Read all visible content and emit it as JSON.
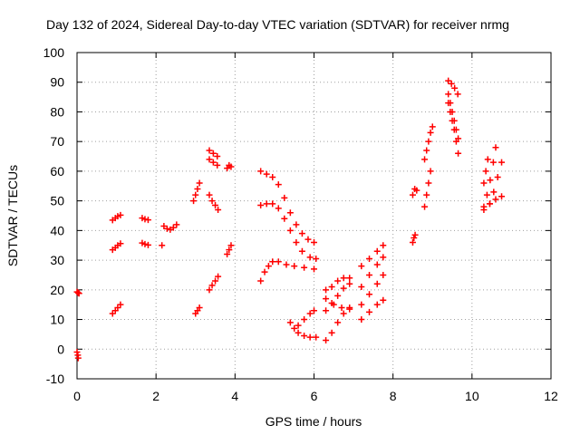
{
  "chart_data": {
    "type": "scatter",
    "title": "Day 132 of 2024, Sidereal Day-to-day VTEC variation (SDTVAR) for receiver nrmg",
    "xlabel": "GPS time / hours",
    "ylabel": "SDTVAR / TECUs",
    "xlim": [
      0,
      12
    ],
    "ylim": [
      -10,
      100
    ],
    "xticks": [
      "0",
      "2",
      "4",
      "6",
      "8",
      "10",
      "12"
    ],
    "yticks": [
      "-10",
      "0",
      "10",
      "20",
      "30",
      "40",
      "50",
      "60",
      "70",
      "80",
      "90",
      "100"
    ],
    "grid": true,
    "marker": "plus",
    "color": "#ff0000",
    "series": [
      {
        "name": "SDTVAR",
        "points": [
          [
            0.0,
            19.3
          ],
          [
            0.03,
            19.0
          ],
          [
            0.05,
            18.8
          ],
          [
            0.0,
            -1.0
          ],
          [
            0.02,
            -2.0
          ],
          [
            0.03,
            -3.0
          ],
          [
            0.9,
            12.0
          ],
          [
            0.97,
            13.0
          ],
          [
            1.03,
            14.0
          ],
          [
            1.1,
            15.0
          ],
          [
            0.9,
            33.5
          ],
          [
            0.97,
            34.2
          ],
          [
            1.03,
            35.0
          ],
          [
            1.1,
            35.6
          ],
          [
            0.9,
            43.5
          ],
          [
            0.97,
            44.2
          ],
          [
            1.03,
            44.8
          ],
          [
            1.1,
            45.2
          ],
          [
            1.65,
            44.2
          ],
          [
            1.72,
            43.8
          ],
          [
            1.8,
            43.6
          ],
          [
            1.65,
            35.8
          ],
          [
            1.72,
            35.4
          ],
          [
            1.8,
            35.1
          ],
          [
            2.15,
            35.0
          ],
          [
            2.2,
            41.5
          ],
          [
            2.28,
            40.6
          ],
          [
            2.36,
            40.3
          ],
          [
            2.44,
            41.0
          ],
          [
            2.52,
            42.0
          ],
          [
            3.0,
            12.0
          ],
          [
            3.05,
            13.0
          ],
          [
            3.1,
            14.0
          ],
          [
            2.95,
            50.0
          ],
          [
            3.0,
            52.0
          ],
          [
            3.05,
            54.0
          ],
          [
            3.1,
            56.0
          ],
          [
            3.35,
            20.0
          ],
          [
            3.42,
            21.5
          ],
          [
            3.5,
            23.0
          ],
          [
            3.57,
            24.5
          ],
          [
            3.35,
            52.0
          ],
          [
            3.42,
            50.0
          ],
          [
            3.5,
            48.5
          ],
          [
            3.57,
            47.0
          ],
          [
            3.35,
            64.0
          ],
          [
            3.45,
            63.0
          ],
          [
            3.55,
            62.0
          ],
          [
            3.35,
            67.0
          ],
          [
            3.45,
            66.0
          ],
          [
            3.55,
            65.0
          ],
          [
            3.8,
            32.0
          ],
          [
            3.85,
            33.5
          ],
          [
            3.9,
            35.0
          ],
          [
            3.8,
            61.0
          ],
          [
            3.85,
            62.0
          ],
          [
            3.9,
            61.5
          ],
          [
            4.65,
            23.0
          ],
          [
            4.75,
            26.0
          ],
          [
            4.85,
            28.0
          ],
          [
            4.95,
            29.5
          ],
          [
            5.1,
            29.5
          ],
          [
            5.3,
            28.5
          ],
          [
            5.5,
            28.0
          ],
          [
            5.75,
            27.5
          ],
          [
            6.0,
            27.0
          ],
          [
            4.65,
            48.5
          ],
          [
            4.8,
            49.0
          ],
          [
            4.95,
            49.0
          ],
          [
            5.1,
            47.5
          ],
          [
            5.25,
            44.0
          ],
          [
            5.4,
            40.0
          ],
          [
            5.55,
            36.0
          ],
          [
            5.7,
            33.0
          ],
          [
            5.9,
            31.0
          ],
          [
            6.05,
            30.5
          ],
          [
            4.65,
            60.0
          ],
          [
            4.8,
            59.0
          ],
          [
            4.95,
            58.0
          ],
          [
            5.1,
            55.5
          ],
          [
            5.25,
            51.0
          ],
          [
            5.4,
            46.0
          ],
          [
            5.55,
            42.0
          ],
          [
            5.7,
            39.0
          ],
          [
            5.85,
            37.0
          ],
          [
            6.0,
            36.0
          ],
          [
            5.4,
            9.0
          ],
          [
            5.5,
            7.0
          ],
          [
            5.6,
            5.5
          ],
          [
            5.75,
            4.5
          ],
          [
            5.9,
            4.0
          ],
          [
            6.05,
            4.0
          ],
          [
            5.6,
            8.0
          ],
          [
            5.75,
            10.0
          ],
          [
            5.9,
            12.0
          ],
          [
            6.0,
            13.0
          ],
          [
            6.3,
            3.0
          ],
          [
            6.45,
            5.5
          ],
          [
            6.6,
            9.0
          ],
          [
            6.75,
            12.0
          ],
          [
            6.9,
            14.0
          ],
          [
            6.3,
            13.0
          ],
          [
            6.45,
            15.5
          ],
          [
            6.6,
            18.0
          ],
          [
            6.75,
            20.5
          ],
          [
            6.9,
            22.0
          ],
          [
            6.3,
            20.0
          ],
          [
            6.45,
            21.0
          ],
          [
            6.6,
            23.0
          ],
          [
            6.75,
            24.0
          ],
          [
            6.9,
            24.0
          ],
          [
            6.3,
            17.0
          ],
          [
            6.5,
            15.0
          ],
          [
            6.7,
            14.0
          ],
          [
            6.9,
            13.5
          ],
          [
            7.2,
            10.0
          ],
          [
            7.4,
            12.5
          ],
          [
            7.6,
            15.0
          ],
          [
            7.75,
            16.5
          ],
          [
            7.2,
            15.0
          ],
          [
            7.4,
            18.5
          ],
          [
            7.6,
            22.0
          ],
          [
            7.75,
            25.0
          ],
          [
            7.2,
            21.0
          ],
          [
            7.4,
            25.0
          ],
          [
            7.6,
            28.5
          ],
          [
            7.75,
            31.0
          ],
          [
            7.2,
            28.0
          ],
          [
            7.4,
            30.5
          ],
          [
            7.6,
            33.0
          ],
          [
            7.75,
            35.0
          ],
          [
            8.5,
            36.0
          ],
          [
            8.53,
            37.5
          ],
          [
            8.56,
            38.5
          ],
          [
            8.5,
            52.0
          ],
          [
            8.55,
            54.0
          ],
          [
            8.6,
            53.5
          ],
          [
            8.8,
            48.0
          ],
          [
            8.85,
            52.0
          ],
          [
            8.9,
            56.0
          ],
          [
            8.95,
            60.0
          ],
          [
            8.8,
            64.0
          ],
          [
            8.85,
            67.0
          ],
          [
            8.9,
            70.0
          ],
          [
            8.95,
            73.0
          ],
          [
            9.0,
            75.0
          ],
          [
            9.4,
            83.0
          ],
          [
            9.45,
            80.0
          ],
          [
            9.5,
            77.0
          ],
          [
            9.55,
            74.0
          ],
          [
            9.6,
            70.0
          ],
          [
            9.65,
            66.0
          ],
          [
            9.4,
            86.0
          ],
          [
            9.45,
            83.0
          ],
          [
            9.5,
            80.0
          ],
          [
            9.55,
            77.0
          ],
          [
            9.6,
            74.0
          ],
          [
            9.65,
            71.0
          ],
          [
            9.4,
            90.5
          ],
          [
            9.48,
            89.5
          ],
          [
            9.56,
            88.0
          ],
          [
            9.64,
            86.0
          ],
          [
            10.3,
            47.0
          ],
          [
            10.38,
            52.0
          ],
          [
            10.46,
            57.0
          ],
          [
            10.54,
            63.0
          ],
          [
            10.6,
            68.0
          ],
          [
            10.3,
            56.0
          ],
          [
            10.35,
            60.0
          ],
          [
            10.4,
            64.0
          ],
          [
            10.3,
            48.0
          ],
          [
            10.45,
            49.0
          ],
          [
            10.6,
            50.5
          ],
          [
            10.75,
            51.5
          ],
          [
            10.45,
            49.0
          ],
          [
            10.55,
            53.0
          ],
          [
            10.65,
            58.0
          ],
          [
            10.75,
            63.0
          ]
        ]
      }
    ]
  }
}
